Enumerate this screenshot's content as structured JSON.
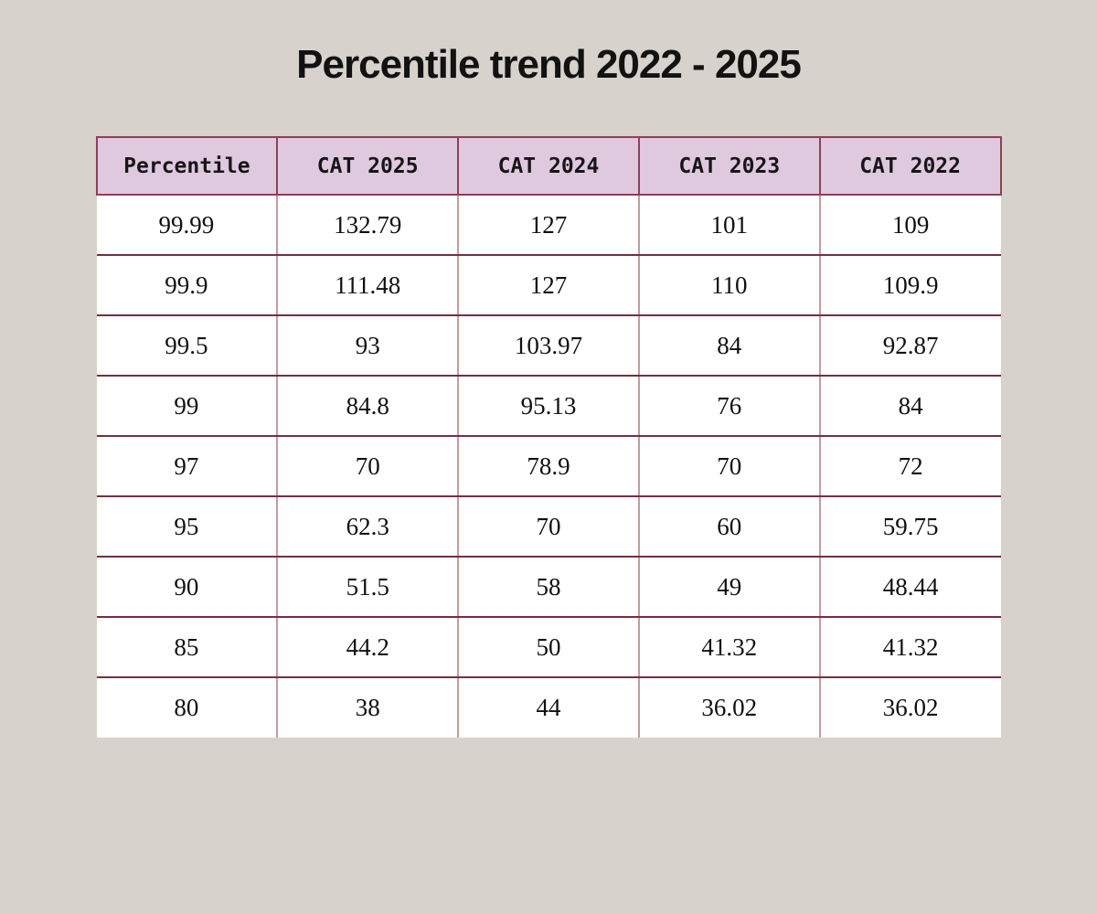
{
  "page": {
    "title": "Percentile trend 2022 - 2025",
    "background_color": "#d7d2cc"
  },
  "chart_data": {
    "type": "table",
    "title": "Percentile trend 2022 - 2025",
    "columns": [
      "Percentile",
      "CAT 2025",
      "CAT 2024",
      "CAT 2023",
      "CAT 2022"
    ],
    "rows": [
      [
        "99.99",
        "132.79",
        "127",
        "101",
        "109"
      ],
      [
        "99.9",
        "111.48",
        "127",
        "110",
        "109.9"
      ],
      [
        "99.5",
        "93",
        "103.97",
        "84",
        "92.87"
      ],
      [
        "99",
        "84.8",
        "95.13",
        "76",
        "84"
      ],
      [
        "97",
        "70",
        "78.9",
        "70",
        "72"
      ],
      [
        "95",
        "62.3",
        "70",
        "60",
        "59.75"
      ],
      [
        "90",
        "51.5",
        "58",
        "49",
        "48.44"
      ],
      [
        "85",
        "44.2",
        "50",
        "41.32",
        "41.32"
      ],
      [
        "80",
        "38",
        "44",
        "36.02",
        "36.02"
      ]
    ],
    "colors": {
      "page_bg": "#d7d2cc",
      "header_bg": "#dfc9df",
      "header_border": "#8e4056",
      "row_divider": "#73303f",
      "column_divider": "#c49b9f",
      "body_bg": "#ffffff",
      "text": "#141414"
    },
    "layout": {
      "legend": "none",
      "grid": "table-borders"
    }
  }
}
